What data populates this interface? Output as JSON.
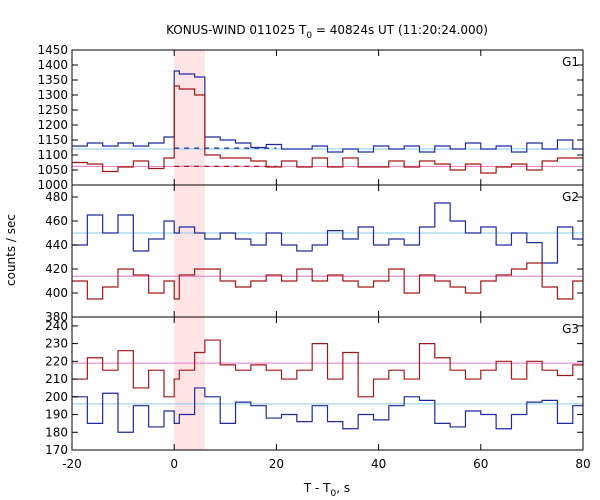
{
  "chart_data": {
    "type": "line",
    "title": {
      "prefix": "KONUS-WIND 011025 T",
      "sub": "0",
      "suffix": " = 40824s UT (11:20:24.000)"
    },
    "xlabel": {
      "prefix": "T - T",
      "sub": "0",
      "suffix": ", s"
    },
    "ylabel": "counts / sec",
    "xlim": [
      -20,
      80
    ],
    "xticks": [
      "-20",
      "0",
      "20",
      "40",
      "60",
      "80"
    ],
    "highlight_interval": [
      0,
      6
    ],
    "colors": {
      "blue": "#1f2a9c",
      "red": "#a01818",
      "light_blue": "#87ceeb",
      "light_red": "#e87ac8",
      "highlight": "#ffe4e6"
    },
    "panels": [
      {
        "label": "G1",
        "ylim": [
          1000,
          1450
        ],
        "yticks": [
          "1000",
          "1050",
          "1100",
          "1150",
          "1200",
          "1250",
          "1300",
          "1350",
          "1400",
          "1450"
        ],
        "bins": [
          -20,
          -17,
          -14,
          -11,
          -8,
          -5,
          -2,
          0,
          1,
          4,
          6,
          9,
          12,
          15,
          18,
          21,
          24,
          27,
          30,
          33,
          36,
          39,
          42,
          45,
          48,
          51,
          54,
          57,
          60,
          63,
          66,
          69,
          72,
          75,
          78,
          80
        ],
        "series": [
          {
            "name": "",
            "color": "blue",
            "values": [
              1130,
              1140,
              1130,
              1140,
              1130,
              1140,
              1160,
              1380,
              1370,
              1360,
              1160,
              1150,
              1140,
              1125,
              1135,
              1120,
              1120,
              1130,
              1110,
              1120,
              1110,
              1130,
              1120,
              1130,
              1110,
              1130,
              1120,
              1140,
              1120,
              1130,
              1110,
              1140,
              1120,
              1150,
              1120
            ]
          },
          {
            "name": "",
            "color": "red",
            "values": [
              1075,
              1070,
              1045,
              1060,
              1080,
              1055,
              1090,
              1330,
              1320,
              1300,
              1100,
              1090,
              1090,
              1080,
              1060,
              1080,
              1060,
              1090,
              1060,
              1090,
              1060,
              1060,
              1080,
              1060,
              1080,
              1070,
              1050,
              1070,
              1040,
              1060,
              1070,
              1050,
              1080,
              1090,
              1090
            ]
          }
        ],
        "background": [
          {
            "color": "light_blue",
            "value": 1120
          },
          {
            "color": "light_red",
            "value": 1062
          }
        ],
        "dashed": [
          {
            "color": "blue",
            "x": [
              0,
              20
            ],
            "value": 1123
          },
          {
            "color": "red",
            "x": [
              0,
              20
            ],
            "value": 1062
          }
        ]
      },
      {
        "label": "G2",
        "ylim": [
          380,
          490
        ],
        "yticks": [
          "380",
          "400",
          "420",
          "440",
          "460",
          "480"
        ],
        "bins": [
          -20,
          -17,
          -14,
          -11,
          -8,
          -5,
          -2,
          0,
          1,
          4,
          6,
          9,
          12,
          15,
          18,
          21,
          24,
          27,
          30,
          33,
          36,
          39,
          42,
          45,
          48,
          51,
          54,
          57,
          60,
          63,
          66,
          69,
          72,
          75,
          78,
          80
        ],
        "series": [
          {
            "name": "",
            "color": "blue",
            "values": [
              440,
              465,
              450,
              465,
              435,
              445,
              460,
              450,
              455,
              450,
              445,
              450,
              445,
              440,
              450,
              440,
              435,
              440,
              452,
              445,
              455,
              440,
              445,
              440,
              455,
              475,
              460,
              450,
              455,
              440,
              450,
              442,
              425,
              455,
              445
            ]
          },
          {
            "name": "",
            "color": "red",
            "values": [
              410,
              395,
              405,
              420,
              415,
              400,
              410,
              395,
              415,
              420,
              420,
              410,
              405,
              410,
              415,
              410,
              420,
              410,
              415,
              410,
              405,
              410,
              420,
              400,
              415,
              410,
              405,
              400,
              410,
              415,
              420,
              425,
              405,
              395,
              410
            ]
          }
        ],
        "background": [
          {
            "color": "light_blue",
            "value": 450
          },
          {
            "color": "light_red",
            "value": 414
          }
        ],
        "dashed": []
      },
      {
        "label": "G3",
        "ylim": [
          170,
          245
        ],
        "yticks": [
          "170",
          "180",
          "190",
          "200",
          "210",
          "220",
          "230",
          "240"
        ],
        "bins": [
          -20,
          -17,
          -14,
          -11,
          -8,
          -5,
          -2,
          0,
          1,
          4,
          6,
          9,
          12,
          15,
          18,
          21,
          24,
          27,
          30,
          33,
          36,
          39,
          42,
          45,
          48,
          51,
          54,
          57,
          60,
          63,
          66,
          69,
          72,
          75,
          78,
          80
        ],
        "series": [
          {
            "name": "",
            "color": "blue",
            "values": [
              200,
              185,
              202,
              180,
              195,
              183,
              192,
              185,
              190,
              205,
              200,
              185,
              197,
              195,
              188,
              190,
              186,
              195,
              186,
              182,
              190,
              187,
              195,
              200,
              198,
              185,
              183,
              192,
              190,
              182,
              190,
              197,
              198,
              185,
              195
            ]
          },
          {
            "name": "",
            "color": "red",
            "values": [
              210,
              222,
              215,
              226,
              205,
              215,
              200,
              210,
              215,
              225,
              232,
              218,
              215,
              218,
              215,
              210,
              215,
              230,
              210,
              225,
              200,
              210,
              215,
              210,
              230,
              222,
              215,
              210,
              215,
              220,
              210,
              220,
              215,
              212,
              218
            ]
          }
        ],
        "background": [
          {
            "color": "light_blue",
            "value": 196
          },
          {
            "color": "light_red",
            "value": 219
          }
        ],
        "dashed": []
      }
    ]
  }
}
